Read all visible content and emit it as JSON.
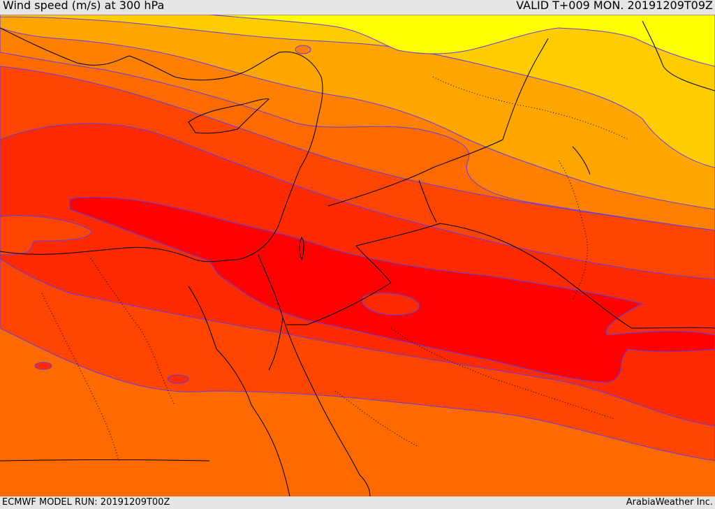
{
  "header": {
    "title": "Wind speed (m/s) at 300 hPa",
    "valid_time": "VALID T+009 MON. 20191209T09Z"
  },
  "footer": {
    "model_run": "ECMWF MODEL RUN: 20191209T00Z",
    "credit": "ArabiaWeather Inc."
  },
  "colors": {
    "band_yellow": "#ffff00",
    "band_gold": "#ffcc00",
    "band_orange_light": "#ffa500",
    "band_orange": "#ff8000",
    "band_orange_red": "#ff4500",
    "band_red_orange": "#ff2a00",
    "band_red": "#ff0000",
    "contour": "#6a3dd6",
    "border": "#000000"
  }
}
